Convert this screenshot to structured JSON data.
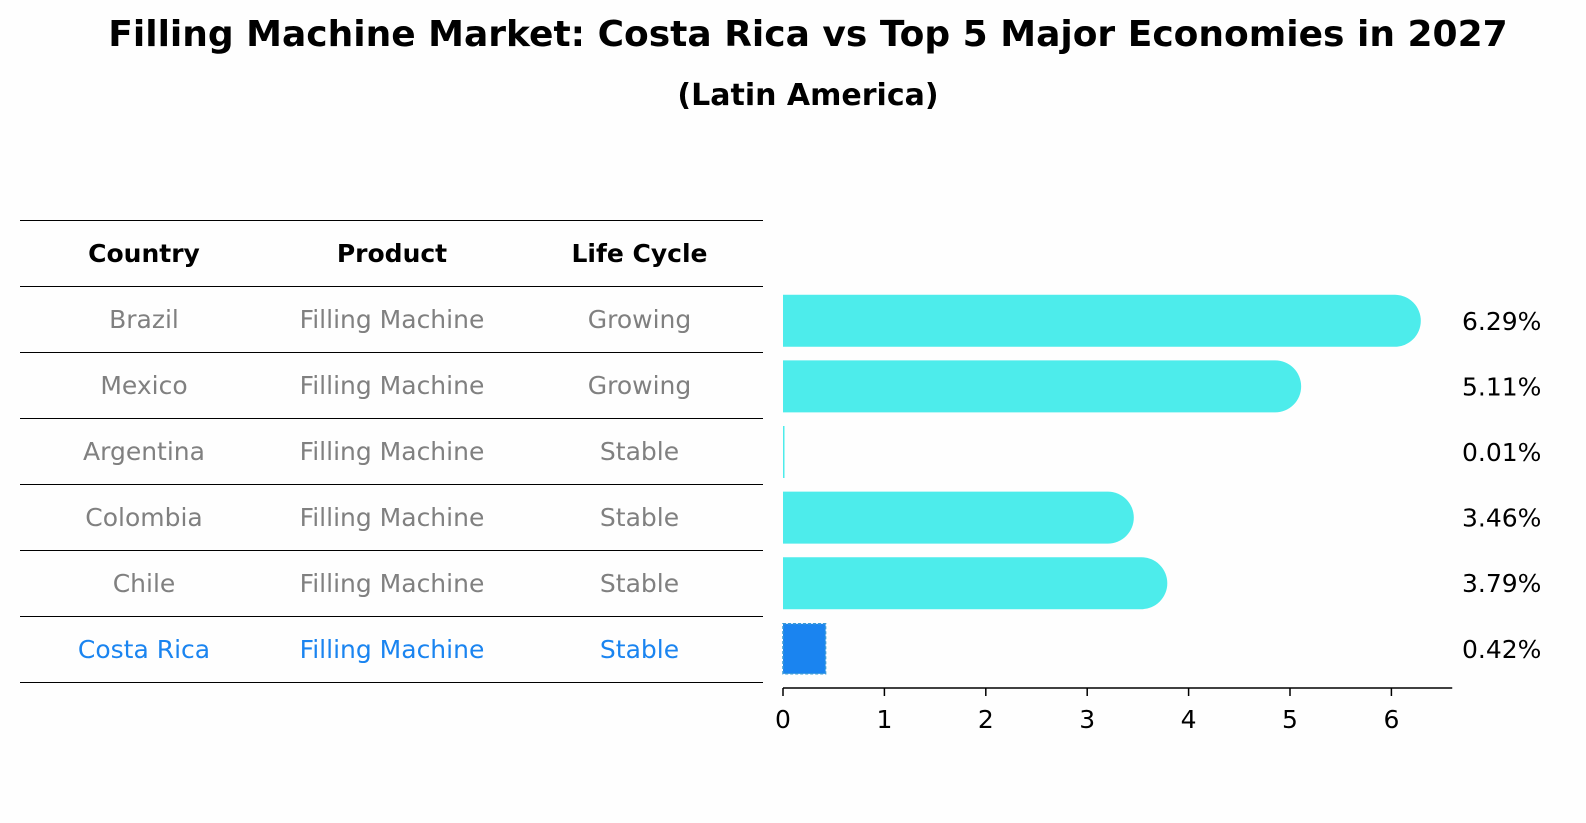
{
  "title": "Filling Machine Market: Costa Rica vs Top 5 Major Economies in 2027",
  "subtitle": "(Latin America)",
  "table": {
    "headers": [
      "Country",
      "Product",
      "Life Cycle"
    ],
    "rows": [
      {
        "country": "Brazil",
        "product": "Filling Machine",
        "life_cycle": "Growing",
        "highlight": false
      },
      {
        "country": "Mexico",
        "product": "Filling Machine",
        "life_cycle": "Growing",
        "highlight": false
      },
      {
        "country": "Argentina",
        "product": "Filling Machine",
        "life_cycle": "Stable",
        "highlight": false
      },
      {
        "country": "Colombia",
        "product": "Filling Machine",
        "life_cycle": "Stable",
        "highlight": false
      },
      {
        "country": "Chile",
        "product": "Filling Machine",
        "life_cycle": "Stable",
        "highlight": false
      },
      {
        "country": "Costa Rica",
        "product": "Filling Machine",
        "life_cycle": "Stable",
        "highlight": true
      }
    ]
  },
  "colors": {
    "bar": "#4deceb",
    "highlight_bar": "#1a84f0",
    "normal_text": "#808080",
    "highlight_text": "#1a84f0"
  },
  "chart_data": {
    "type": "bar",
    "orientation": "horizontal",
    "categories": [
      "Brazil",
      "Mexico",
      "Argentina",
      "Colombia",
      "Chile",
      "Costa Rica"
    ],
    "values": [
      6.29,
      5.11,
      0.01,
      3.46,
      3.79,
      0.42
    ],
    "value_labels": [
      "6.29%",
      "5.11%",
      "0.01%",
      "3.46%",
      "3.79%",
      "0.42%"
    ],
    "highlight": "Costa Rica",
    "xlim": [
      0,
      6.6
    ],
    "xticks": [
      0,
      1,
      2,
      3,
      4,
      5,
      6
    ],
    "xlabel": "",
    "ylabel": ""
  }
}
